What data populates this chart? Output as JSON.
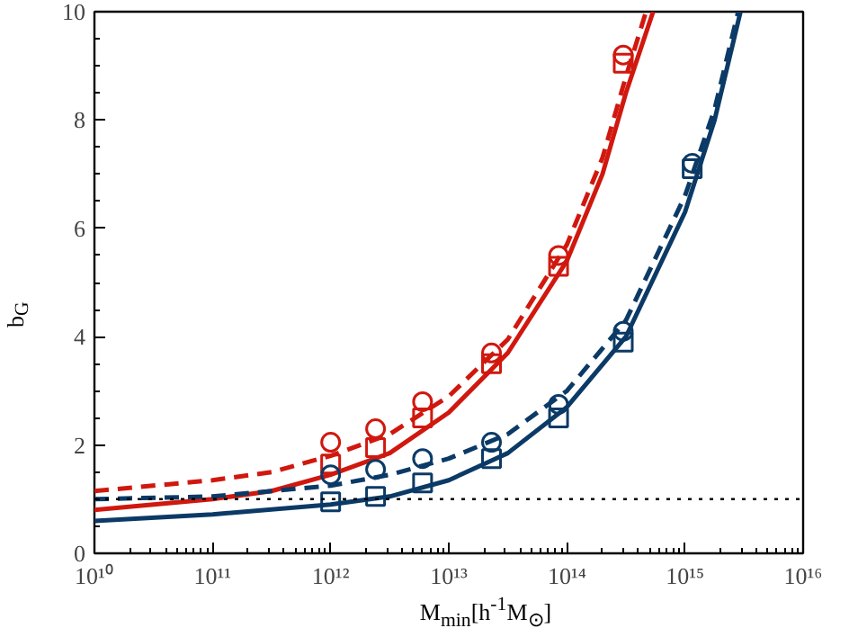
{
  "chart_data": {
    "type": "line",
    "xlabel": "M$_{min}$[h$^{-1}$M$_{⊙}$]",
    "ylabel": "b$_{G}$",
    "log": "x",
    "grid": false,
    "xlim": [
      10000000000.0,
      1e+16
    ],
    "ylim": [
      0,
      10
    ],
    "xticks": [
      {
        "value": 10000000000.0,
        "label": "10¹⁰"
      },
      {
        "value": 100000000000.0,
        "label": "10¹¹"
      },
      {
        "value": 1000000000000.0,
        "label": "10¹²"
      },
      {
        "value": 10000000000000.0,
        "label": "10¹³"
      },
      {
        "value": 100000000000000.0,
        "label": "10¹⁴"
      },
      {
        "value": 1000000000000000.0,
        "label": "10¹⁵"
      },
      {
        "value": 1e+16,
        "label": "10¹⁶"
      }
    ],
    "yticks": [
      0,
      2,
      4,
      6,
      8,
      10
    ],
    "ref_lines": [
      {
        "axis": "y",
        "value": 1,
        "label": null,
        "color": "#000000",
        "line_style": "dotted"
      }
    ],
    "series": [
      {
        "type": "line",
        "color": "#d0180f",
        "line_style": "solid",
        "x": [
          10000000000.0,
          100000000000.0,
          316000000000.0,
          1000000000000.0,
          3160000000000.0,
          10000000000000.0,
          31600000000000.0,
          100000000000000.0,
          200000000000000.0,
          316000000000000.0,
          537000000000000.0
        ],
        "values": [
          0.8,
          1.0,
          1.15,
          1.45,
          1.85,
          2.6,
          3.7,
          5.4,
          7.0,
          8.5,
          10
        ]
      },
      {
        "type": "line",
        "color": "#d0180f",
        "line_style": "dashed",
        "x": [
          10000000000.0,
          100000000000.0,
          316000000000.0,
          1000000000000.0,
          3160000000000.0,
          10000000000000.0,
          31600000000000.0,
          100000000000000.0,
          200000000000000.0,
          316000000000000.0,
          468000000000000.0
        ],
        "values": [
          1.15,
          1.35,
          1.5,
          1.8,
          2.2,
          2.9,
          3.95,
          5.7,
          7.3,
          8.8,
          10
        ]
      },
      {
        "type": "line",
        "color": "#0b3a66",
        "line_style": "solid",
        "x": [
          10000000000.0,
          100000000000.0,
          1000000000000.0,
          3160000000000.0,
          10000000000000.0,
          31600000000000.0,
          100000000000000.0,
          316000000000000.0,
          1000000000000000.0,
          1780000000000000.0,
          2950000000000000.0
        ],
        "values": [
          0.6,
          0.72,
          0.9,
          1.05,
          1.35,
          1.85,
          2.7,
          4.0,
          6.3,
          8.0,
          10
        ]
      },
      {
        "type": "line",
        "color": "#0b3a66",
        "line_style": "dashed",
        "x": [
          10000000000.0,
          100000000000.0,
          1000000000000.0,
          3160000000000.0,
          10000000000000.0,
          31600000000000.0,
          100000000000000.0,
          316000000000000.0,
          1000000000000000.0,
          1780000000000000.0,
          2820000000000000.0
        ],
        "values": [
          1.0,
          1.05,
          1.25,
          1.45,
          1.75,
          2.2,
          3.0,
          4.3,
          6.6,
          8.2,
          10
        ]
      },
      {
        "type": "scatter",
        "color": "#d0180f",
        "marker": "circle",
        "x": [
          1000000000000.0,
          2400000000000.0,
          6000000000000.0,
          23000000000000.0,
          85000000000000.0,
          300000000000000.0
        ],
        "values": [
          2.05,
          2.3,
          2.8,
          3.7,
          5.5,
          9.2
        ]
      },
      {
        "type": "scatter",
        "color": "#d0180f",
        "marker": "square",
        "x": [
          1000000000000.0,
          2400000000000.0,
          6000000000000.0,
          23000000000000.0,
          85000000000000.0,
          300000000000000.0
        ],
        "values": [
          1.65,
          1.95,
          2.5,
          3.5,
          5.3,
          9.05
        ]
      },
      {
        "type": "scatter",
        "color": "#0b3a66",
        "marker": "circle",
        "x": [
          1000000000000.0,
          2400000000000.0,
          6000000000000.0,
          23000000000000.0,
          85000000000000.0,
          300000000000000.0,
          1150000000000000.0
        ],
        "values": [
          1.45,
          1.55,
          1.75,
          2.05,
          2.75,
          4.1,
          7.2
        ]
      },
      {
        "type": "scatter",
        "color": "#0b3a66",
        "marker": "square",
        "x": [
          1000000000000.0,
          2400000000000.0,
          6000000000000.0,
          23000000000000.0,
          85000000000000.0,
          300000000000000.0,
          1150000000000000.0
        ],
        "values": [
          0.95,
          1.05,
          1.3,
          1.75,
          2.5,
          3.9,
          7.1
        ]
      }
    ]
  }
}
